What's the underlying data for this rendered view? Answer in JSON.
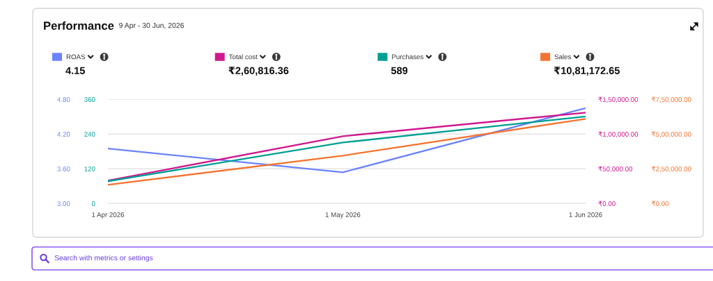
{
  "chart_data": [
    {
      "type": "line",
      "title": "Performance",
      "subtitle": "9 Apr - 30 Jun, 2026",
      "x": [
        "2026-04-01",
        "2026-05-01",
        "2026-06-01"
      ],
      "xlim": [
        "2026-04-01",
        "2026-06-01"
      ],
      "xticks": [
        {
          "value": "2026-04-01",
          "label": "1 Apr 2026"
        },
        {
          "value": "2026-05-01",
          "label": "1 May 2026"
        },
        {
          "value": "2026-06-01",
          "label": "1 Jun 2026"
        }
      ],
      "series": [
        {
          "name": "ROAS",
          "color": "#6b83ff",
          "values": [
            3.95,
            3.54,
            4.65
          ],
          "axis": "y"
        },
        {
          "name": "Total cost",
          "color": "#d0178f",
          "values": [
            33000,
            97000,
            131000
          ],
          "axis": "y2"
        }
      ],
      "ylim": [
        3,
        4.8
      ],
      "yticks": [
        {
          "value": 3,
          "label": "3.00"
        },
        {
          "value": 3.6,
          "label": "3.60"
        },
        {
          "value": 4.2,
          "label": "4.20"
        },
        {
          "value": 4.8,
          "label": "4.80"
        }
      ],
      "y2lim": [
        0,
        150000
      ],
      "y2ticks": [
        {
          "value": 0,
          "label": "₹0.00"
        },
        {
          "value": 50000,
          "label": "₹50,000.00"
        },
        {
          "value": 100000,
          "label": "₹1,00,000.00"
        },
        {
          "value": 150000,
          "label": "₹1,50,000.00"
        }
      ],
      "grid": "y",
      "legend": "top",
      "annotations": [
        "4.15",
        "₹2,60,816.36"
      ]
    },
    {
      "type": "line",
      "x": [
        "2026-04-01",
        "2026-05-01",
        "2026-06-01"
      ],
      "xlim": [
        "2026-04-01",
        "2026-06-01"
      ],
      "series": [
        {
          "name": "Purchases",
          "color": "#009e94",
          "values": [
            77,
            211,
            301
          ],
          "axis": "y"
        },
        {
          "name": "Sales",
          "color": "#f4732f",
          "values": [
            135000,
            345000,
            610000
          ],
          "axis": "y2"
        }
      ],
      "ylim": [
        0,
        360
      ],
      "yticks": [
        0,
        120,
        240,
        360
      ],
      "y2lim": [
        0,
        750000
      ],
      "y2ticks": [
        {
          "value": 0,
          "label": "₹0.00"
        },
        {
          "value": 250000,
          "label": "₹2,50,000.00"
        },
        {
          "value": 500000,
          "label": "₹5,00,000.00"
        },
        {
          "value": 750000,
          "label": "₹7,50,000.00"
        }
      ],
      "tick_labels": "y",
      "legend": "top",
      "annotations": [
        "589",
        "₹10,81,172.65",
        "Search with metrics or settings"
      ]
    }
  ]
}
